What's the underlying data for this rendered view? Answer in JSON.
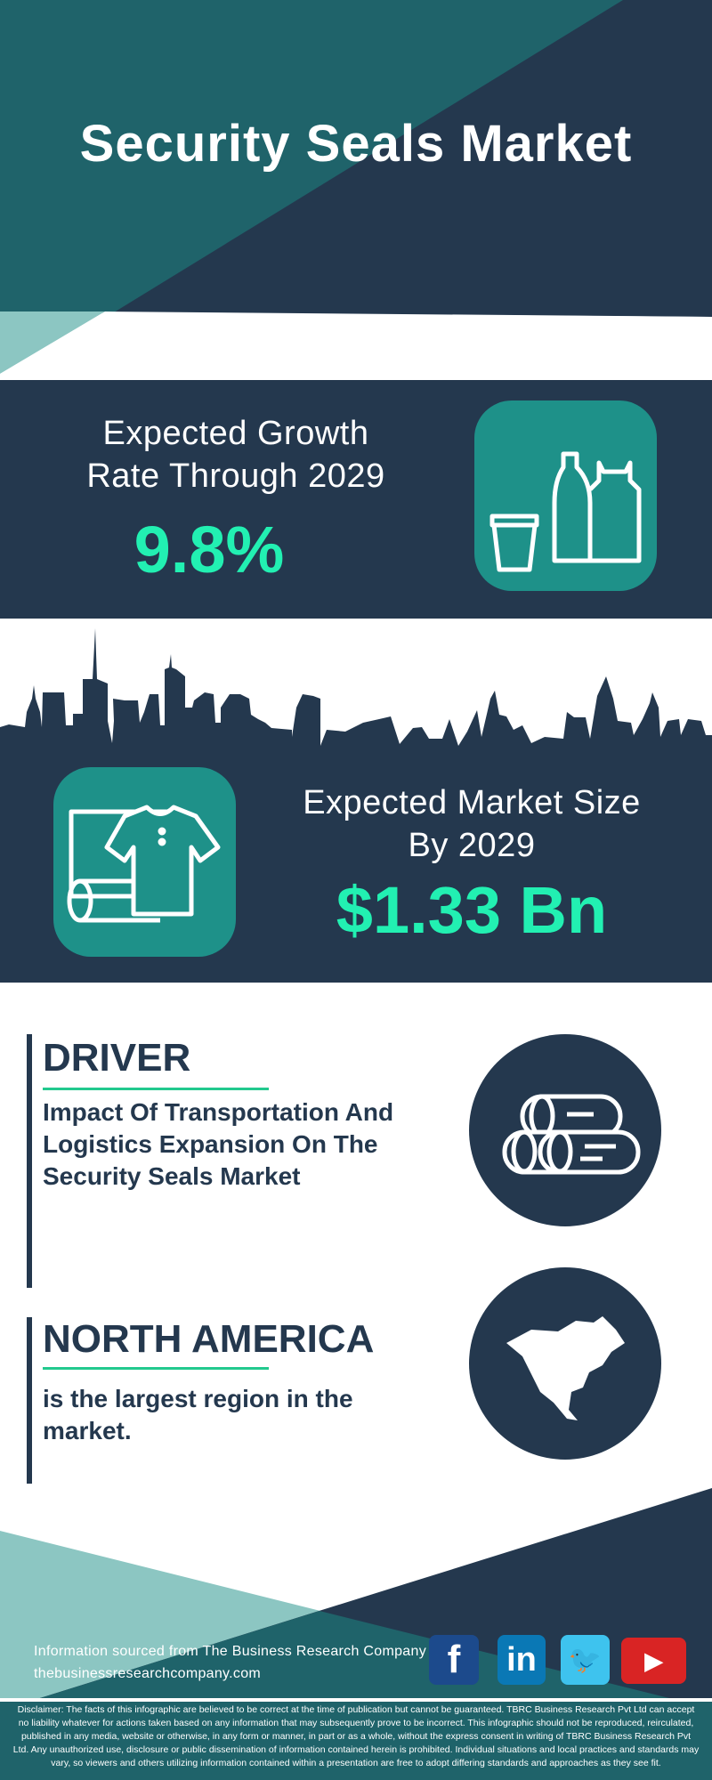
{
  "title": "Security Seals Market",
  "growth": {
    "label_line1": "Expected Growth",
    "label_line2": "Rate Through 2029",
    "value": "9.8%",
    "icon": "bottle-cup-bag-icon"
  },
  "market_size": {
    "label_line1": "Expected Market Size",
    "label_line2": "By 2029",
    "value": "$1.33 Bn",
    "icon": "fabric-roll-shirt-icon"
  },
  "driver": {
    "heading": "DRIVER",
    "text_lines": [
      "Impact Of Transportation And",
      "Logistics Expansion On The",
      "Security Seals Market"
    ],
    "icon": "logs-icon"
  },
  "region": {
    "heading": "NORTH AMERICA",
    "text_lines": [
      "is the largest region in the",
      "market."
    ],
    "icon": "north-america-map-icon"
  },
  "footer": {
    "source": "Information sourced from The Business Research Company",
    "website": "thebusinessresearchcompany.com",
    "social": [
      {
        "name": "facebook",
        "glyph": "f",
        "color": "#1c4a8c"
      },
      {
        "name": "linkedin",
        "glyph": "in",
        "color": "#0a78b5"
      },
      {
        "name": "twitter",
        "glyph": "🐦",
        "color": "#3ec3ee"
      },
      {
        "name": "youtube",
        "glyph": "▶",
        "color": "#d92424"
      }
    ],
    "disclaimer": "Disclaimer: The facts of this infographic are believed to be correct at the time of publication but cannot be guaranteed. TBRC Business Research Pvt Ltd can accept no liability whatever for actions taken based on any information that may subsequently prove to be incorrect. This infographic should not be reproduced, reirculated, published in any media, website or otherwise, in any form or manner, in part or as a whole, without the express consent in writing of TBRC Business Research Pvt Ltd. Any unauthorized use, disclosure or public dissemination of information contained herein is prohibited. Individual situations and local practices and standards may vary, so viewers and others utilizing information contained within a presentation are free to adopt differing standards and approaches as they see fit."
  },
  "colors": {
    "navy": "#24384e",
    "teal": "#1f636a",
    "light_teal": "#8cc6c2",
    "accent": "#22f0b2",
    "icon_box": "#1e9189"
  }
}
